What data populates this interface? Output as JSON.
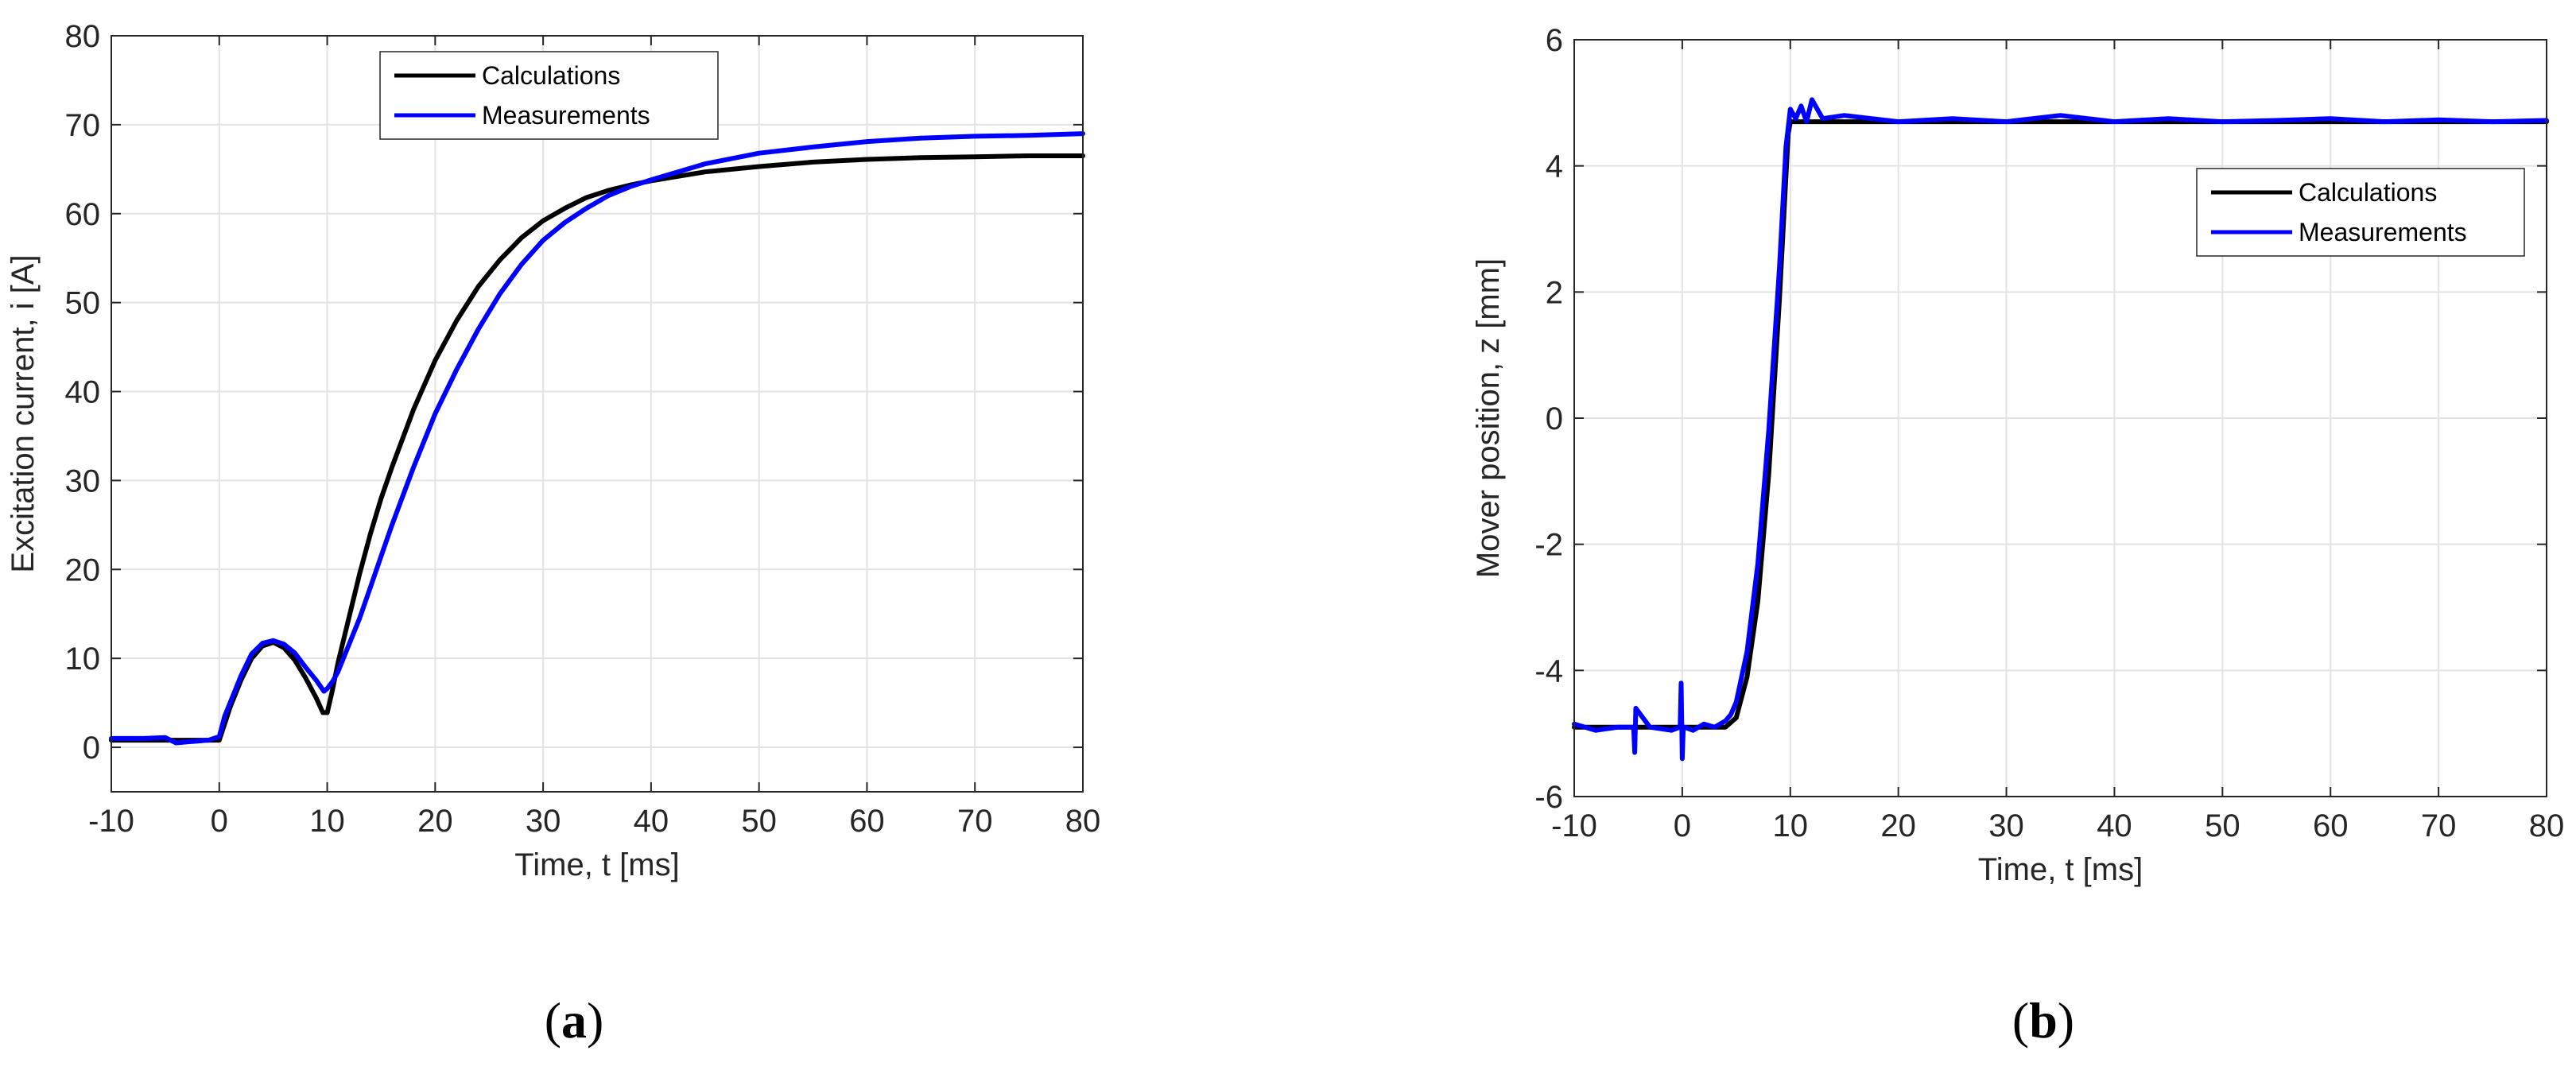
{
  "colors": {
    "calculations": "#000000",
    "measurements": "#0000FF",
    "grid": "#e3e3e3",
    "axis": "#262626"
  },
  "chart_data": [
    {
      "type": "line",
      "caption_letter": "a",
      "title": "",
      "xlabel": "Time, t [ms]",
      "ylabel": "Excitation current, i [A]",
      "xlim": [
        -10,
        80
      ],
      "ylim": [
        -5,
        80
      ],
      "xticks": [
        -10,
        0,
        10,
        20,
        30,
        40,
        50,
        60,
        70,
        80
      ],
      "yticks": [
        0,
        10,
        20,
        30,
        40,
        50,
        60,
        70,
        80
      ],
      "xtick_labels": [
        "-10",
        "0",
        "10",
        "20",
        "30",
        "40",
        "50",
        "60",
        "70",
        "80"
      ],
      "ytick_labels": [
        "0",
        "10",
        "20",
        "30",
        "40",
        "50",
        "60",
        "70",
        "80"
      ],
      "grid": true,
      "legend_position": "top-center",
      "series": [
        {
          "name": "Calculations",
          "x": [
            -10,
            -5,
            0,
            1,
            2,
            3,
            4,
            5,
            6,
            7,
            8,
            9,
            9.6,
            10,
            10.5,
            11,
            12,
            13,
            14,
            15,
            16,
            18,
            20,
            22,
            24,
            26,
            28,
            30,
            32,
            34,
            36,
            38,
            40,
            45,
            50,
            55,
            60,
            65,
            70,
            75,
            80
          ],
          "y": [
            0.8,
            0.8,
            0.8,
            4.5,
            7.5,
            10.0,
            11.4,
            11.8,
            11.2,
            9.8,
            7.8,
            5.5,
            3.9,
            3.9,
            6.5,
            9.5,
            14.5,
            19.5,
            24.0,
            28.0,
            31.5,
            38.0,
            43.5,
            48.0,
            51.8,
            54.8,
            57.3,
            59.2,
            60.6,
            61.8,
            62.6,
            63.2,
            63.7,
            64.7,
            65.3,
            65.8,
            66.1,
            66.3,
            66.4,
            66.5,
            66.5
          ]
        },
        {
          "name": "Measurements",
          "x": [
            -10,
            -7,
            -5,
            -4,
            -3,
            -1,
            0,
            0.5,
            1,
            2,
            3,
            4,
            5,
            6,
            7,
            8,
            9,
            9.7,
            10,
            10.5,
            11,
            12,
            13,
            14,
            15,
            16,
            18,
            20,
            22,
            24,
            26,
            28,
            30,
            32,
            34,
            36,
            38,
            40,
            45,
            50,
            55,
            60,
            65,
            70,
            75,
            80
          ],
          "y": [
            1.0,
            1.0,
            1.1,
            0.5,
            0.6,
            0.8,
            1.2,
            3.5,
            5.0,
            8.0,
            10.5,
            11.7,
            12.0,
            11.6,
            10.6,
            9.0,
            7.5,
            6.3,
            6.6,
            7.4,
            8.5,
            11.5,
            14.5,
            18.0,
            21.5,
            25.0,
            31.5,
            37.5,
            42.5,
            47.0,
            51.0,
            54.3,
            57.0,
            59.0,
            60.6,
            62.0,
            63.0,
            63.8,
            65.6,
            66.8,
            67.5,
            68.1,
            68.5,
            68.7,
            68.8,
            69.0
          ]
        }
      ]
    },
    {
      "type": "line",
      "caption_letter": "b",
      "title": "",
      "xlabel": "Time, t [ms]",
      "ylabel": "Mover position, z [mm]",
      "xlim": [
        -10,
        80
      ],
      "ylim": [
        -6,
        6
      ],
      "xticks": [
        -10,
        0,
        10,
        20,
        30,
        40,
        50,
        60,
        70,
        80
      ],
      "yticks": [
        -6,
        -4,
        -2,
        0,
        2,
        4,
        6
      ],
      "xtick_labels": [
        "-10",
        "0",
        "10",
        "20",
        "30",
        "40",
        "50",
        "60",
        "70",
        "80"
      ],
      "ytick_labels": [
        "-6",
        "-4",
        "-2",
        "0",
        "2",
        "4",
        "6"
      ],
      "grid": true,
      "legend_position": "top-right",
      "series": [
        {
          "name": "Calculations",
          "x": [
            -10,
            0,
            4,
            5,
            6,
            7,
            8,
            9,
            9.8,
            10,
            15,
            20,
            30,
            40,
            50,
            60,
            70,
            80
          ],
          "y": [
            -4.9,
            -4.9,
            -4.9,
            -4.75,
            -4.1,
            -2.9,
            -0.9,
            1.9,
            4.5,
            4.7,
            4.7,
            4.7,
            4.7,
            4.7,
            4.7,
            4.7,
            4.7,
            4.7
          ]
        },
        {
          "name": "Measurements",
          "x": [
            -10,
            -8,
            -6,
            -4.5,
            -4.4,
            -4.3,
            -3,
            -1,
            -0.2,
            -0.1,
            0,
            0.1,
            0.2,
            1,
            2,
            3,
            4,
            4.5,
            5,
            6,
            7,
            8,
            9,
            9.6,
            10,
            10.5,
            11,
            11.5,
            12,
            13,
            15,
            20,
            25,
            30,
            35,
            40,
            45,
            50,
            55,
            60,
            65,
            70,
            75,
            80
          ],
          "y": [
            -4.85,
            -4.95,
            -4.9,
            -4.9,
            -5.3,
            -4.6,
            -4.9,
            -4.95,
            -4.9,
            -4.2,
            -5.4,
            -4.9,
            -4.9,
            -4.95,
            -4.85,
            -4.9,
            -4.8,
            -4.7,
            -4.5,
            -3.7,
            -2.3,
            -0.2,
            2.4,
            4.3,
            4.9,
            4.75,
            4.95,
            4.7,
            5.05,
            4.75,
            4.8,
            4.7,
            4.75,
            4.7,
            4.8,
            4.7,
            4.75,
            4.7,
            4.72,
            4.75,
            4.7,
            4.73,
            4.7,
            4.72
          ]
        }
      ]
    }
  ]
}
